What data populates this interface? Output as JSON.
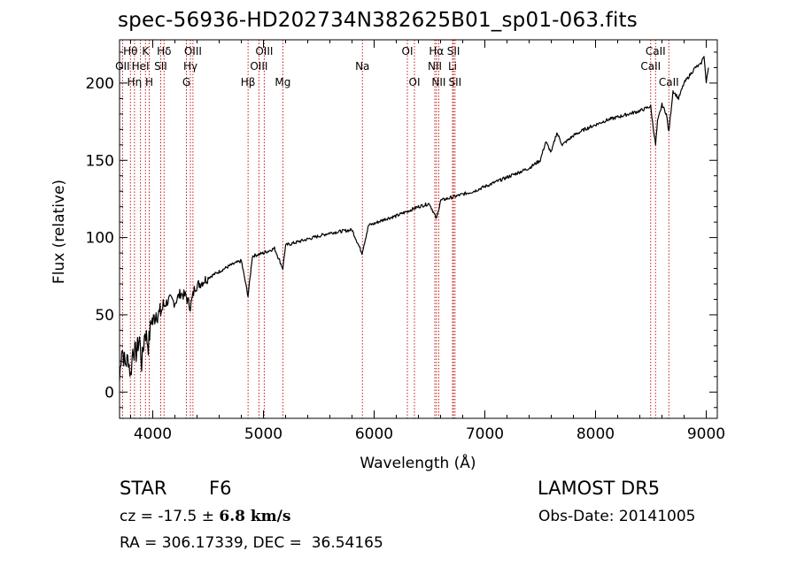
{
  "header": {
    "title": "spec-56936-HD202734N382625B01_sp01-063.fits"
  },
  "info": {
    "object_type": "STAR",
    "subclass": "F6",
    "survey": "LAMOST DR5",
    "cz_label": "cz = ",
    "cz_value": "-17.5",
    "cz_pm": " ± ",
    "cz_error": "6.8",
    "cz_unit": " km/s",
    "obs_date": "Obs-Date: 20141005",
    "ra_dec": "RA = 306.17339, DEC =  36.54165"
  },
  "chart_data": {
    "type": "line",
    "xlabel": "Wavelength (Å)",
    "ylabel": "Flux (relative)",
    "xlim": [
      3700,
      9100
    ],
    "ylim": [
      -17,
      228
    ],
    "xticks": [
      4000,
      5000,
      6000,
      7000,
      8000,
      9000
    ],
    "yticks": [
      0,
      50,
      100,
      150,
      200
    ],
    "line_color": "#000000",
    "marker_color": "#c00000",
    "series": [
      {
        "x": [
          3700,
          3720,
          3750,
          3780,
          3800,
          3820,
          3850,
          3880,
          3900,
          3930,
          3960,
          3990,
          4000,
          4030,
          4060,
          4100,
          4150,
          4200,
          4250,
          4300,
          4340,
          4380,
          4420,
          4500,
          4600,
          4700,
          4800,
          4861,
          4900,
          5000,
          5100,
          5175,
          5200,
          5300,
          5400,
          5500,
          5600,
          5700,
          5800,
          5890,
          5950,
          6000,
          6100,
          6200,
          6300,
          6400,
          6500,
          6563,
          6600,
          6700,
          6800,
          6900,
          7000,
          7100,
          7200,
          7300,
          7400,
          7500,
          7550,
          7600,
          7650,
          7700,
          7800,
          7900,
          8000,
          8100,
          8200,
          8300,
          8400,
          8498,
          8520,
          8542,
          8560,
          8600,
          8640,
          8662,
          8700,
          8750,
          8800,
          8850,
          8900,
          8950,
          8980,
          9000,
          9020
        ],
        "y": [
          8,
          30,
          18,
          22,
          10,
          28,
          25,
          35,
          18,
          40,
          30,
          48,
          45,
          52,
          50,
          56,
          60,
          58,
          64,
          62,
          55,
          68,
          70,
          74,
          78,
          82,
          85,
          62,
          88,
          90,
          93,
          80,
          95,
          97,
          99,
          101,
          103,
          104,
          105,
          90,
          108,
          109,
          112,
          114,
          117,
          120,
          122,
          112,
          124,
          126,
          128,
          130,
          133,
          136,
          139,
          142,
          145,
          150,
          162,
          155,
          168,
          160,
          166,
          170,
          173,
          176,
          178,
          180,
          182,
          185,
          172,
          160,
          175,
          186,
          180,
          168,
          195,
          190,
          200,
          205,
          210,
          212,
          218,
          200,
          210
        ]
      }
    ],
    "lines": [
      {
        "label": "OII",
        "x": 3727,
        "row": 2
      },
      {
        "label": "Hθ",
        "x": 3798,
        "row": 1
      },
      {
        "label": "Hη",
        "x": 3835,
        "row": 3
      },
      {
        "label": "HeI",
        "x": 3889,
        "row": 2
      },
      {
        "label": "K",
        "x": 3934,
        "row": 1
      },
      {
        "label": "H",
        "x": 3968,
        "row": 3
      },
      {
        "label": "SII",
        "x": 4072,
        "row": 2
      },
      {
        "label": "Hδ",
        "x": 4102,
        "row": 1
      },
      {
        "label": "G",
        "x": 4304,
        "row": 3
      },
      {
        "label": "Hγ",
        "x": 4340,
        "row": 2
      },
      {
        "label": "OIII",
        "x": 4363,
        "row": 1
      },
      {
        "label": "Hβ",
        "x": 4861,
        "row": 3
      },
      {
        "label": "OIII",
        "x": 4959,
        "row": 2
      },
      {
        "label": "OIII",
        "x": 5007,
        "row": 1
      },
      {
        "label": "Mg",
        "x": 5175,
        "row": 3
      },
      {
        "label": "Na",
        "x": 5894,
        "row": 2
      },
      {
        "label": "OI",
        "x": 6300,
        "row": 1
      },
      {
        "label": "OI",
        "x": 6364,
        "row": 3
      },
      {
        "label": "NII",
        "x": 6548,
        "row": 2
      },
      {
        "label": "Hα",
        "x": 6563,
        "row": 1
      },
      {
        "label": "NII",
        "x": 6583,
        "row": 3
      },
      {
        "label": "Li",
        "x": 6708,
        "row": 2
      },
      {
        "label": "SII",
        "x": 6717,
        "row": 1
      },
      {
        "label": "SII",
        "x": 6731,
        "row": 3
      },
      {
        "label": "CaII",
        "x": 8498,
        "row": 2
      },
      {
        "label": "CaII",
        "x": 8542,
        "row": 1
      },
      {
        "label": "CaII",
        "x": 8662,
        "row": 3
      }
    ]
  }
}
